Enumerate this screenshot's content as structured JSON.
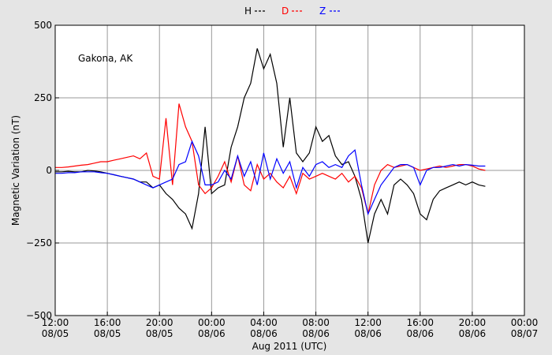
{
  "chart_data": {
    "type": "line",
    "annotation": "Gakona, AK",
    "ylabel": "Magnetic Variation (nT)",
    "xlabel": "Aug 2011 (UTC)",
    "ylim": [
      -500,
      500
    ],
    "yticks": [
      {
        "value": -500,
        "label": "−500"
      },
      {
        "value": -250,
        "label": "−250"
      },
      0,
      250,
      500
    ],
    "xlim": [
      "2011-08-05T12:00",
      "2011-08-07T00:00"
    ],
    "xticks": [
      {
        "value": "2011-08-05T12:00",
        "label": [
          "12:00",
          "08/05"
        ]
      },
      {
        "value": "2011-08-05T16:00",
        "label": [
          "16:00",
          "08/05"
        ]
      },
      {
        "value": "2011-08-05T20:00",
        "label": [
          "20:00",
          "08/05"
        ]
      },
      {
        "value": "2011-08-06T00:00",
        "label": [
          "00:00",
          "08/06"
        ]
      },
      {
        "value": "2011-08-06T04:00",
        "label": [
          "04:00",
          "08/06"
        ]
      },
      {
        "value": "2011-08-06T08:00",
        "label": [
          "08:00",
          "08/06"
        ]
      },
      {
        "value": "2011-08-06T12:00",
        "label": [
          "12:00",
          "08/06"
        ]
      },
      {
        "value": "2011-08-06T16:00",
        "label": [
          "16:00",
          "08/06"
        ]
      },
      {
        "value": "2011-08-06T20:00",
        "label": [
          "20:00",
          "08/06"
        ]
      },
      {
        "value": "2011-08-07T00:00",
        "label": [
          "00:00",
          "08/07"
        ]
      }
    ],
    "grid": true,
    "x": [
      "2011-08-05T12:00",
      "2011-08-05T12:30",
      "2011-08-05T13:00",
      "2011-08-05T13:30",
      "2011-08-05T14:00",
      "2011-08-05T14:30",
      "2011-08-05T15:00",
      "2011-08-05T15:30",
      "2011-08-05T16:00",
      "2011-08-05T16:30",
      "2011-08-05T17:00",
      "2011-08-05T17:30",
      "2011-08-05T18:00",
      "2011-08-05T18:30",
      "2011-08-05T19:00",
      "2011-08-05T19:30",
      "2011-08-05T20:00",
      "2011-08-05T20:30",
      "2011-08-05T21:00",
      "2011-08-05T21:30",
      "2011-08-05T22:00",
      "2011-08-05T22:30",
      "2011-08-05T23:00",
      "2011-08-05T23:30",
      "2011-08-06T00:00",
      "2011-08-06T00:30",
      "2011-08-06T01:00",
      "2011-08-06T01:30",
      "2011-08-06T02:00",
      "2011-08-06T02:30",
      "2011-08-06T03:00",
      "2011-08-06T03:30",
      "2011-08-06T04:00",
      "2011-08-06T04:30",
      "2011-08-06T05:00",
      "2011-08-06T05:30",
      "2011-08-06T06:00",
      "2011-08-06T06:30",
      "2011-08-06T07:00",
      "2011-08-06T07:30",
      "2011-08-06T08:00",
      "2011-08-06T08:30",
      "2011-08-06T09:00",
      "2011-08-06T09:30",
      "2011-08-06T10:00",
      "2011-08-06T10:30",
      "2011-08-06T11:00",
      "2011-08-06T11:30",
      "2011-08-06T12:00",
      "2011-08-06T12:30",
      "2011-08-06T13:00",
      "2011-08-06T13:30",
      "2011-08-06T14:00",
      "2011-08-06T14:30",
      "2011-08-06T15:00",
      "2011-08-06T15:30",
      "2011-08-06T16:00",
      "2011-08-06T16:30",
      "2011-08-06T17:00",
      "2011-08-06T17:30",
      "2011-08-06T18:00",
      "2011-08-06T18:30",
      "2011-08-06T19:00",
      "2011-08-06T19:30",
      "2011-08-06T20:00",
      "2011-08-06T20:30",
      "2011-08-06T21:00"
    ],
    "series": [
      {
        "name": "H",
        "color": "#000000",
        "values": [
          -5,
          -5,
          -3,
          -5,
          -5,
          0,
          -2,
          -5,
          -10,
          -15,
          -20,
          -25,
          -30,
          -40,
          -40,
          -60,
          -50,
          -80,
          -100,
          -130,
          -150,
          -200,
          -80,
          150,
          -80,
          -60,
          -50,
          80,
          150,
          250,
          300,
          420,
          350,
          400,
          300,
          80,
          250,
          60,
          30,
          60,
          150,
          100,
          120,
          50,
          20,
          30,
          -20,
          -100,
          -250,
          -150,
          -100,
          -150,
          -50,
          -30,
          -50,
          -80,
          -150,
          -170,
          -100,
          -70,
          -60,
          -50,
          -40,
          -50,
          -40,
          -50,
          -55
        ]
      },
      {
        "name": "D",
        "color": "#ff0000",
        "values": [
          10,
          10,
          12,
          15,
          18,
          20,
          25,
          30,
          30,
          35,
          40,
          45,
          50,
          40,
          60,
          -20,
          -30,
          180,
          -50,
          230,
          150,
          100,
          -50,
          -80,
          -60,
          -20,
          30,
          -40,
          50,
          -50,
          -70,
          20,
          -30,
          -10,
          -40,
          -60,
          -20,
          -80,
          -10,
          -30,
          -20,
          -10,
          -20,
          -30,
          -10,
          -40,
          -20,
          -60,
          -150,
          -50,
          0,
          20,
          10,
          15,
          20,
          10,
          0,
          5,
          10,
          15,
          10,
          15,
          20,
          20,
          15,
          5,
          0
        ]
      },
      {
        "name": "Z",
        "color": "#0000ff",
        "values": [
          -10,
          -10,
          -8,
          -8,
          -5,
          -5,
          -5,
          -8,
          -10,
          -15,
          -20,
          -25,
          -30,
          -40,
          -50,
          -60,
          -50,
          -40,
          -30,
          20,
          30,
          100,
          50,
          -50,
          -50,
          -40,
          0,
          -30,
          50,
          -20,
          30,
          -50,
          60,
          -30,
          40,
          -10,
          30,
          -60,
          10,
          -20,
          20,
          30,
          10,
          20,
          10,
          50,
          70,
          -50,
          -150,
          -100,
          -50,
          -20,
          10,
          20,
          20,
          10,
          -50,
          0,
          10,
          10,
          15,
          20,
          15,
          20,
          18,
          15,
          15
        ]
      }
    ]
  }
}
